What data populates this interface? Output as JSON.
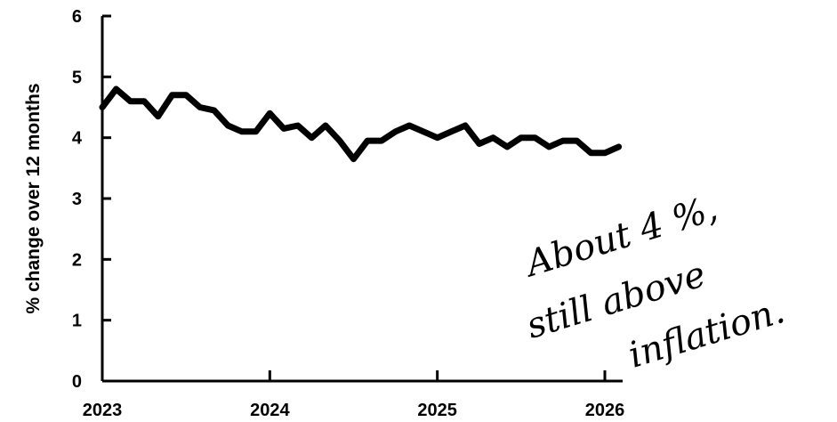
{
  "chart_data": {
    "type": "line",
    "ylabel": "% change over 12 months",
    "xlabel": "",
    "title": "",
    "xlim": [
      2023.0,
      2026.1
    ],
    "ylim": [
      0,
      6
    ],
    "yticks": [
      "0",
      "1",
      "2",
      "3",
      "4",
      "5",
      "6"
    ],
    "xticks": [
      "2023",
      "2024",
      "2025",
      "2026"
    ],
    "grid": false,
    "annotation": [
      "About 4 %,",
      "still above",
      "inflation."
    ],
    "series": [
      {
        "x": [
          2023.0,
          2023.083,
          2023.167,
          2023.25,
          2023.333,
          2023.417,
          2023.5,
          2023.583,
          2023.667,
          2023.75,
          2023.833,
          2023.917,
          2024.0,
          2024.083,
          2024.167,
          2024.25,
          2024.333,
          2024.417,
          2024.5,
          2024.583,
          2024.667,
          2024.75,
          2024.833,
          2024.917,
          2025.0,
          2025.083,
          2025.167,
          2025.25,
          2025.333,
          2025.417,
          2025.5,
          2025.583,
          2025.667,
          2025.75,
          2025.833,
          2025.917,
          2026.0,
          2026.083
        ],
        "values": [
          4.5,
          4.8,
          4.6,
          4.6,
          4.35,
          4.7,
          4.7,
          4.5,
          4.45,
          4.2,
          4.1,
          4.1,
          4.4,
          4.15,
          4.2,
          4.0,
          4.2,
          3.95,
          3.65,
          3.95,
          3.95,
          4.1,
          4.2,
          4.1,
          4.0,
          4.1,
          4.2,
          3.9,
          4.0,
          3.85,
          4.0,
          4.0,
          3.85,
          3.95,
          3.95,
          3.75,
          3.75,
          3.85
        ]
      }
    ]
  }
}
